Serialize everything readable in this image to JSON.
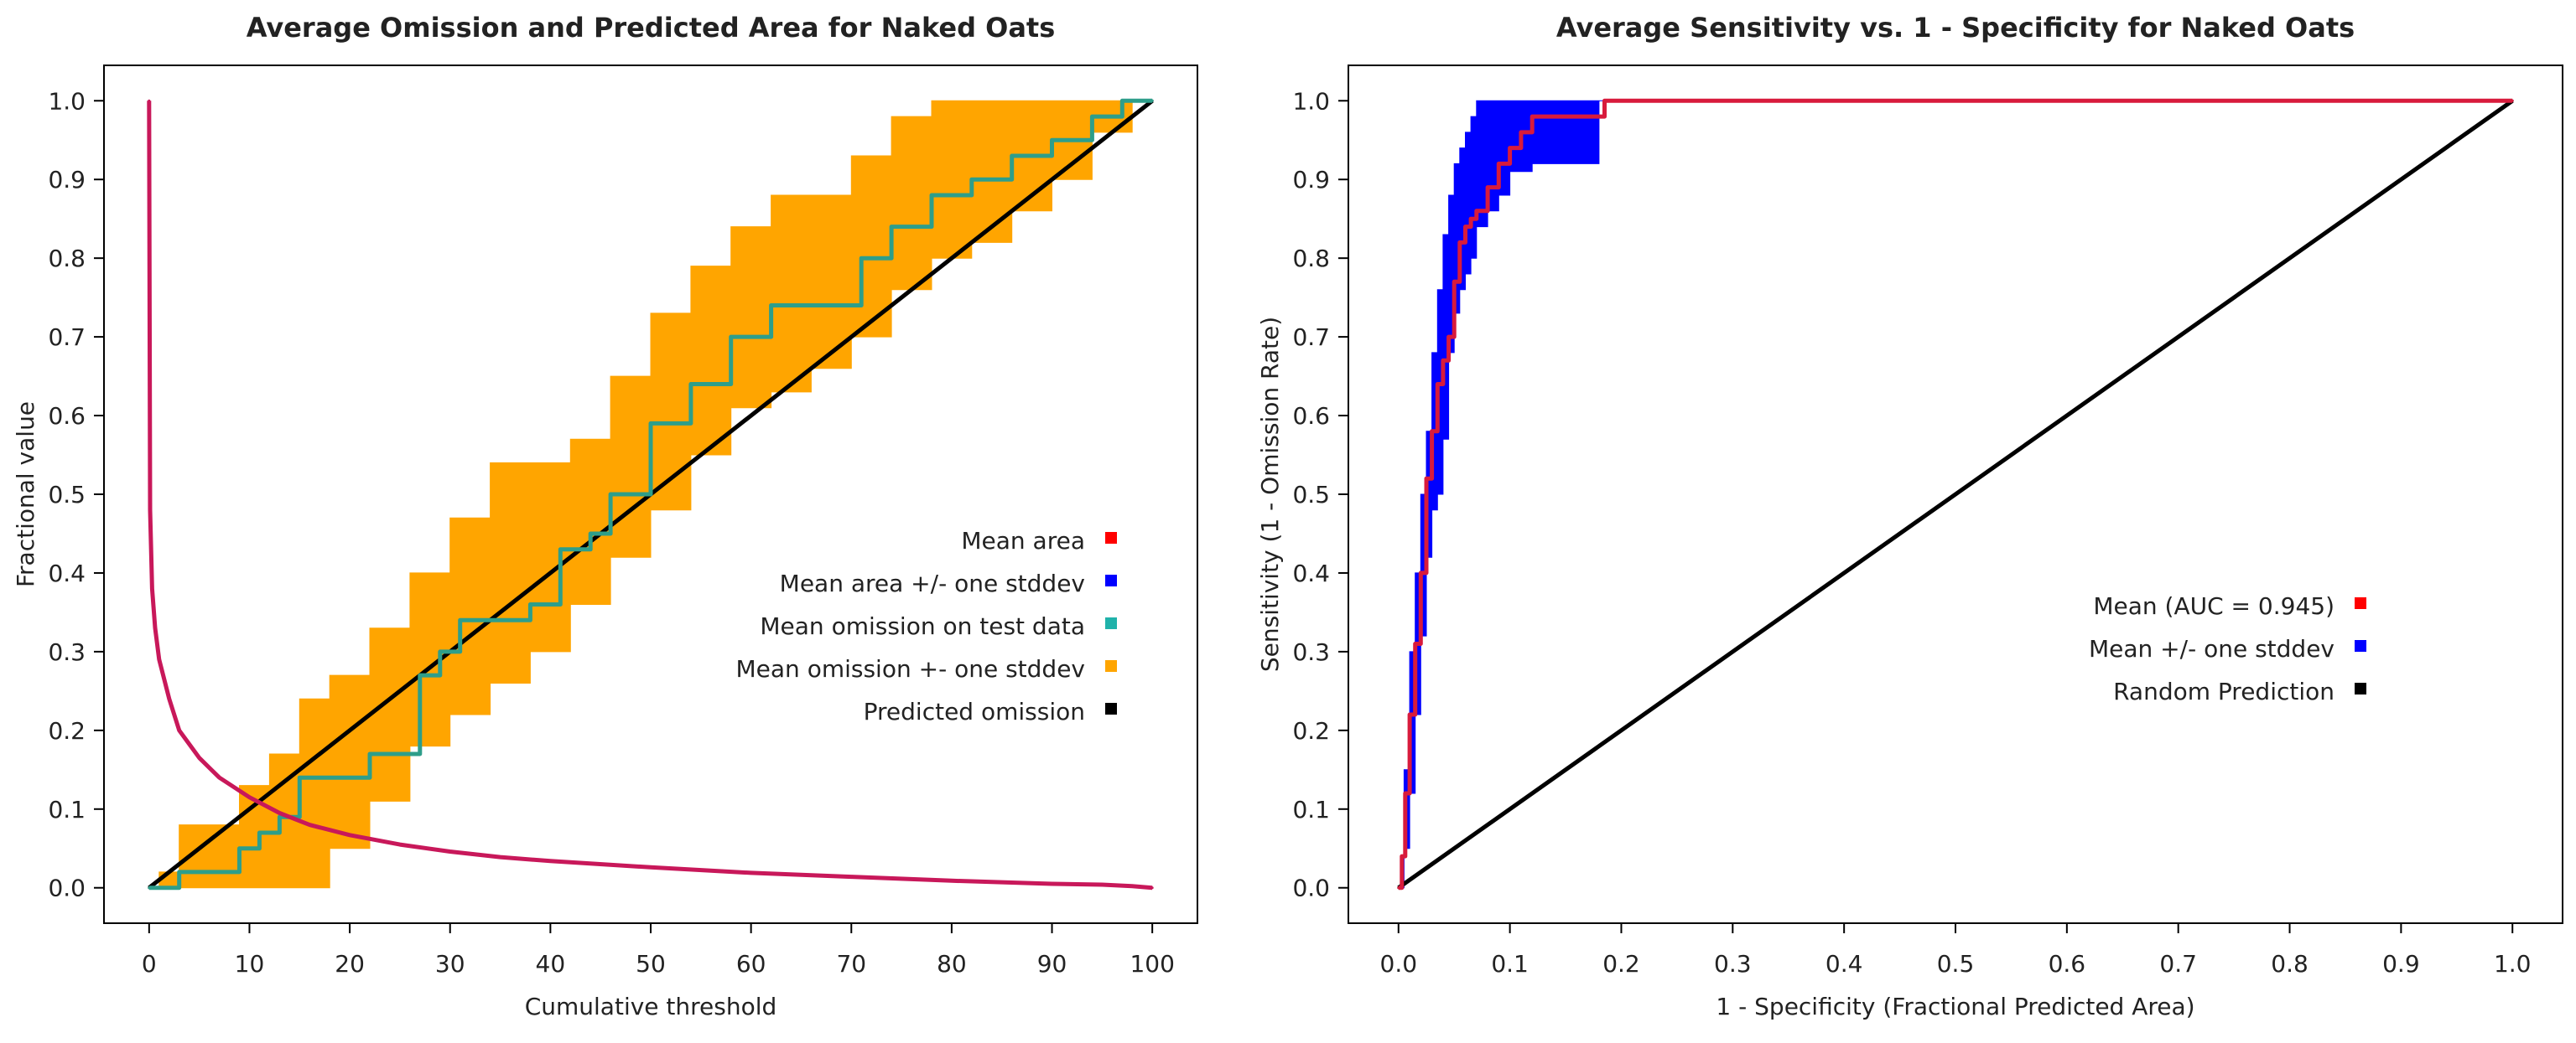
{
  "chart_data": [
    {
      "type": "line",
      "title": "Average Omission and Predicted Area for Naked  Oats",
      "xlabel": "Cumulative threshold",
      "ylabel": "Fractional value",
      "xlim": [
        0,
        100
      ],
      "ylim": [
        0,
        1
      ],
      "xticks": [
        "0",
        "10",
        "20",
        "30",
        "40",
        "50",
        "60",
        "70",
        "80",
        "90",
        "100"
      ],
      "yticks": [
        "0.0",
        "0.1",
        "0.2",
        "0.3",
        "0.4",
        "0.5",
        "0.6",
        "0.7",
        "0.8",
        "0.9",
        "1.0"
      ],
      "legend_position": "right",
      "legend": [
        {
          "label": "Mean area",
          "color": "#ff0000"
        },
        {
          "label": "Mean area +/- one stddev",
          "color": "#0000ff"
        },
        {
          "label": "Mean omission on test data",
          "color": "#20b2aa"
        },
        {
          "label": "Mean omission +- one stddev",
          "color": "#ffa500"
        },
        {
          "label": "Predicted omission",
          "color": "#000000"
        }
      ],
      "series": [
        {
          "name": "Mean omission +- one stddev",
          "kind": "band",
          "color": "#ffa500",
          "x": [
            0,
            1,
            3,
            6,
            9,
            12,
            15,
            18,
            22,
            26,
            30,
            34,
            38,
            42,
            46,
            50,
            54,
            58,
            62,
            66,
            70,
            74,
            78,
            82,
            86,
            90,
            94,
            98,
            100
          ],
          "lower": [
            0.0,
            0.0,
            0.0,
            0.0,
            0.0,
            0.0,
            0.0,
            0.0,
            0.05,
            0.11,
            0.18,
            0.22,
            0.26,
            0.3,
            0.36,
            0.42,
            0.48,
            0.55,
            0.61,
            0.63,
            0.66,
            0.7,
            0.76,
            0.8,
            0.82,
            0.86,
            0.9,
            0.96,
            1.0
          ],
          "upper": [
            0.0,
            0.02,
            0.08,
            0.08,
            0.13,
            0.17,
            0.24,
            0.27,
            0.33,
            0.4,
            0.47,
            0.54,
            0.54,
            0.57,
            0.65,
            0.73,
            0.79,
            0.84,
            0.88,
            0.88,
            0.93,
            0.98,
            1.0,
            1.0,
            1.0,
            1.0,
            1.0,
            1.0,
            1.0
          ]
        },
        {
          "name": "Predicted omission",
          "color": "#000000",
          "x": [
            0,
            100
          ],
          "y": [
            0.0,
            1.0
          ]
        },
        {
          "name": "Mean omission on test data",
          "color": "#2e9e8a",
          "step": true,
          "x": [
            0,
            2,
            3,
            6,
            9,
            11,
            13,
            15,
            18,
            22,
            27,
            29,
            31,
            34,
            38,
            41,
            44,
            46,
            50,
            54,
            58,
            62,
            66,
            71,
            74,
            78,
            82,
            86,
            90,
            94,
            97,
            98,
            100
          ],
          "y": [
            0.0,
            0.0,
            0.02,
            0.02,
            0.05,
            0.07,
            0.09,
            0.14,
            0.14,
            0.17,
            0.27,
            0.3,
            0.34,
            0.34,
            0.36,
            0.43,
            0.45,
            0.5,
            0.59,
            0.64,
            0.7,
            0.74,
            0.74,
            0.8,
            0.84,
            0.88,
            0.9,
            0.93,
            0.95,
            0.98,
            1.0,
            1.0,
            1.0
          ]
        },
        {
          "name": "Mean area",
          "color": "#c8185a",
          "x": [
            0,
            0.1,
            0.3,
            0.6,
            1,
            2,
            3,
            5,
            7,
            10,
            13,
            16,
            20,
            25,
            30,
            35,
            40,
            50,
            60,
            70,
            80,
            90,
            95,
            98,
            100
          ],
          "y": [
            1.0,
            0.48,
            0.38,
            0.33,
            0.29,
            0.24,
            0.2,
            0.165,
            0.14,
            0.115,
            0.095,
            0.08,
            0.067,
            0.055,
            0.046,
            0.039,
            0.034,
            0.026,
            0.019,
            0.014,
            0.009,
            0.005,
            0.004,
            0.002,
            0.0
          ]
        }
      ]
    },
    {
      "type": "line",
      "title": "Average Sensitivity vs. 1 - Specificity for Naked  Oats",
      "xlabel": "1 - Specificity (Fractional Predicted Area)",
      "ylabel": "Sensitivity (1 - Omission Rate)",
      "xlim": [
        0,
        1
      ],
      "ylim": [
        0,
        1
      ],
      "xticks": [
        "0.0",
        "0.1",
        "0.2",
        "0.3",
        "0.4",
        "0.5",
        "0.6",
        "0.7",
        "0.8",
        "0.9",
        "1.0"
      ],
      "yticks": [
        "0.0",
        "0.1",
        "0.2",
        "0.3",
        "0.4",
        "0.5",
        "0.6",
        "0.7",
        "0.8",
        "0.9",
        "1.0"
      ],
      "legend_position": "right",
      "legend": [
        {
          "label": "Mean (AUC = 0.945)",
          "color": "#ff0000"
        },
        {
          "label": "Mean +/- one stddev",
          "color": "#0000ff"
        },
        {
          "label": "Random Prediction",
          "color": "#000000"
        }
      ],
      "series": [
        {
          "name": "Mean +/- one stddev",
          "kind": "band",
          "color": "#0000ff",
          "x": [
            0.0,
            0.005,
            0.01,
            0.015,
            0.02,
            0.025,
            0.03,
            0.035,
            0.04,
            0.045,
            0.05,
            0.055,
            0.06,
            0.065,
            0.07,
            0.08,
            0.09,
            0.1,
            0.12,
            0.15,
            0.18,
            0.185,
            1.0
          ],
          "lower": [
            0.0,
            0.0,
            0.05,
            0.12,
            0.22,
            0.32,
            0.42,
            0.48,
            0.5,
            0.57,
            0.68,
            0.73,
            0.76,
            0.78,
            0.8,
            0.84,
            0.86,
            0.88,
            0.91,
            0.92,
            0.92,
            1.0,
            1.0
          ],
          "upper": [
            0.0,
            0.15,
            0.3,
            0.4,
            0.5,
            0.58,
            0.68,
            0.76,
            0.83,
            0.88,
            0.92,
            0.94,
            0.96,
            0.98,
            1.0,
            1.0,
            1.0,
            1.0,
            1.0,
            1.0,
            1.0,
            1.0,
            1.0
          ]
        },
        {
          "name": "Random Prediction",
          "color": "#000000",
          "x": [
            0.0,
            1.0
          ],
          "y": [
            0.0,
            1.0
          ]
        },
        {
          "name": "Mean (AUC = 0.945)",
          "color": "#d81b3c",
          "step": true,
          "x": [
            0.0,
            0.003,
            0.006,
            0.01,
            0.015,
            0.02,
            0.025,
            0.03,
            0.035,
            0.04,
            0.045,
            0.05,
            0.055,
            0.06,
            0.065,
            0.07,
            0.08,
            0.09,
            0.1,
            0.11,
            0.12,
            0.15,
            0.18,
            0.185,
            0.5,
            1.0
          ],
          "y": [
            0.0,
            0.04,
            0.12,
            0.22,
            0.31,
            0.4,
            0.52,
            0.58,
            0.64,
            0.67,
            0.7,
            0.77,
            0.82,
            0.84,
            0.85,
            0.86,
            0.89,
            0.92,
            0.94,
            0.96,
            0.98,
            0.98,
            0.98,
            1.0,
            1.0,
            1.0
          ]
        }
      ]
    }
  ]
}
